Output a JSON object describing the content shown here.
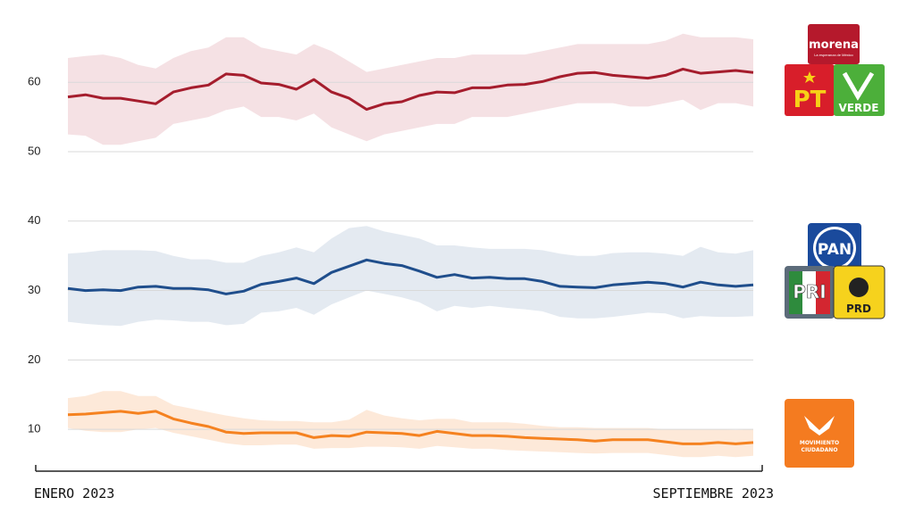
{
  "chart_data": {
    "type": "line",
    "categories": [
      "ENERO 2023",
      null,
      null,
      null,
      null,
      null,
      null,
      null,
      null,
      null,
      null,
      null,
      null,
      null,
      null,
      null,
      null,
      null,
      null,
      null,
      null,
      null,
      null,
      null,
      null,
      null,
      null,
      null,
      null,
      null,
      null,
      null,
      null,
      null,
      null,
      null,
      null,
      null,
      null,
      "SEPTIEMBRE 2023"
    ],
    "ylim": [
      5,
      68
    ],
    "yticks": [
      10,
      20,
      30,
      40,
      50,
      60
    ],
    "grid": true,
    "series": [
      {
        "color": "#a51d2d",
        "band_color": "#f3dcdf",
        "values": [
          57.9,
          58.2,
          57.7,
          57.7,
          57.3,
          56.9,
          58.6,
          59.2,
          59.6,
          61.2,
          61.0,
          59.9,
          59.7,
          59.0,
          60.4,
          58.6,
          57.7,
          56.1,
          56.9,
          57.2,
          58.1,
          58.6,
          58.5,
          59.2,
          59.2,
          59.6,
          59.7,
          60.1,
          60.8,
          61.3,
          61.4,
          61.0,
          60.8,
          60.6,
          61.0,
          61.9,
          61.3,
          61.5,
          61.7,
          61.4
        ],
        "upper": [
          63.5,
          63.8,
          64,
          63.5,
          62.5,
          62,
          63.5,
          64.5,
          65,
          66.5,
          66.5,
          65,
          64.5,
          64,
          65.5,
          64.5,
          63,
          61.5,
          62,
          62.5,
          63,
          63.5,
          63.5,
          64,
          64,
          64,
          64,
          64.5,
          65,
          65.5,
          65.5,
          65.5,
          65.5,
          65.5,
          66,
          67,
          66.5,
          66.5,
          66.5,
          66.2
        ],
        "lower": [
          52.5,
          52.3,
          51,
          51,
          51.5,
          52,
          54,
          54.5,
          55,
          56,
          56.5,
          55,
          55,
          54.5,
          55.5,
          53.5,
          52.5,
          51.5,
          52.5,
          53,
          53.5,
          54,
          54,
          55,
          55,
          55,
          55.5,
          56,
          56.5,
          57,
          57,
          57,
          56.5,
          56.5,
          57,
          57.5,
          56,
          57,
          57,
          56.5
        ]
      },
      {
        "color": "#1f4e8c",
        "band_color": "#dfe6ef",
        "values": [
          30.3,
          30.0,
          30.1,
          30.0,
          30.5,
          30.6,
          30.3,
          30.3,
          30.1,
          29.5,
          29.9,
          30.9,
          31.3,
          31.8,
          31.0,
          32.6,
          33.5,
          34.4,
          33.9,
          33.6,
          32.8,
          31.9,
          32.3,
          31.8,
          31.9,
          31.7,
          31.7,
          31.3,
          30.6,
          30.5,
          30.4,
          30.8,
          31.0,
          31.2,
          31.0,
          30.5,
          31.2,
          30.8,
          30.6,
          30.8
        ],
        "upper": [
          35.3,
          35.5,
          35.8,
          35.8,
          35.8,
          35.7,
          35,
          34.5,
          34.5,
          34,
          34,
          35,
          35.5,
          36.2,
          35.5,
          37.5,
          39,
          39.3,
          38.5,
          38,
          37.5,
          36.5,
          36.5,
          36.2,
          36,
          36,
          36,
          35.8,
          35.3,
          35,
          35,
          35.4,
          35.5,
          35.5,
          35.3,
          35,
          36.3,
          35.5,
          35.3,
          35.8
        ],
        "lower": [
          25.5,
          25.2,
          25,
          24.9,
          25.5,
          25.8,
          25.7,
          25.5,
          25.5,
          25,
          25.2,
          26.8,
          27,
          27.5,
          26.5,
          28,
          29,
          30,
          29.5,
          29,
          28.3,
          27,
          27.8,
          27.5,
          27.8,
          27.5,
          27.3,
          27,
          26.2,
          26,
          26,
          26.2,
          26.5,
          26.8,
          26.7,
          26,
          26.3,
          26.2,
          26.2,
          26.3
        ]
      },
      {
        "color": "#f58220",
        "band_color": "#fde5d2",
        "values": [
          12.1,
          12.2,
          12.4,
          12.6,
          12.3,
          12.6,
          11.5,
          10.9,
          10.4,
          9.6,
          9.4,
          9.5,
          9.5,
          9.5,
          8.8,
          9.1,
          9.0,
          9.6,
          9.5,
          9.4,
          9.1,
          9.7,
          9.4,
          9.1,
          9.1,
          9.0,
          8.8,
          8.7,
          8.6,
          8.5,
          8.3,
          8.5,
          8.5,
          8.5,
          8.2,
          7.9,
          7.9,
          8.1,
          7.9,
          8.1
        ],
        "upper": [
          14.5,
          14.8,
          15.5,
          15.5,
          14.8,
          14.8,
          13.5,
          13,
          12.5,
          12,
          11.6,
          11.3,
          11.2,
          11.2,
          11,
          11,
          11.4,
          12.8,
          12,
          11.6,
          11.3,
          11.5,
          11.5,
          11,
          11,
          11,
          10.8,
          10.5,
          10.3,
          10.3,
          10.2,
          10.2,
          10.2,
          10.2,
          10,
          10,
          10,
          10,
          9.9,
          10
        ],
        "lower": [
          10.2,
          9.8,
          9.6,
          9.6,
          10,
          10.2,
          9.5,
          9,
          8.5,
          8,
          7.7,
          7.7,
          7.8,
          7.8,
          7.2,
          7.3,
          7.3,
          7.5,
          7.5,
          7.4,
          7.2,
          7.6,
          7.4,
          7.2,
          7.2,
          7,
          6.9,
          6.8,
          6.7,
          6.6,
          6.5,
          6.6,
          6.6,
          6.6,
          6.3,
          6,
          6,
          6.2,
          6,
          6.2
        ]
      }
    ]
  },
  "logos": {
    "morena": "morena",
    "morena_tagline": "La esperanza de México",
    "pt": "PT",
    "verde": "VERDE",
    "pan": "PAN",
    "pri": "PRI",
    "prd": "PRD",
    "mc_1": "MOVIMIENTO",
    "mc_2": "CIUDADANO"
  }
}
